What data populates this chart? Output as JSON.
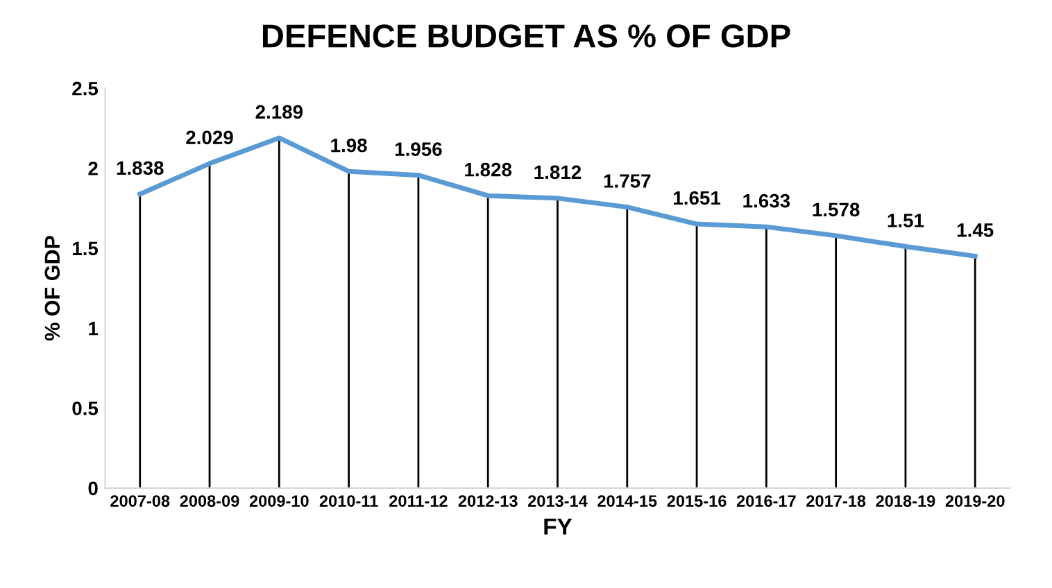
{
  "chart_data": {
    "type": "line",
    "title": "DEFENCE BUDGET AS % OF GDP",
    "xlabel": "FY",
    "ylabel": "% OF GDP",
    "categories": [
      "2007-08",
      "2008-09",
      "2009-10",
      "2010-11",
      "2011-12",
      "2012-13",
      "2013-14",
      "2014-15",
      "2015-16",
      "2016-17",
      "2017-18",
      "2018-19",
      "2019-20"
    ],
    "series": [
      {
        "color": "#5b9bd5",
        "values": [
          1.838,
          2.029,
          2.189,
          1.98,
          1.956,
          1.828,
          1.812,
          1.757,
          1.651,
          1.633,
          1.578,
          1.51,
          1.45
        ]
      }
    ],
    "ylim": [
      0,
      2.5
    ],
    "yticks": [
      0,
      0.5,
      1,
      1.5,
      2,
      2.5
    ],
    "grid": "x",
    "legend": false,
    "marker": "none",
    "line_style": "solid",
    "data_labels": true
  }
}
